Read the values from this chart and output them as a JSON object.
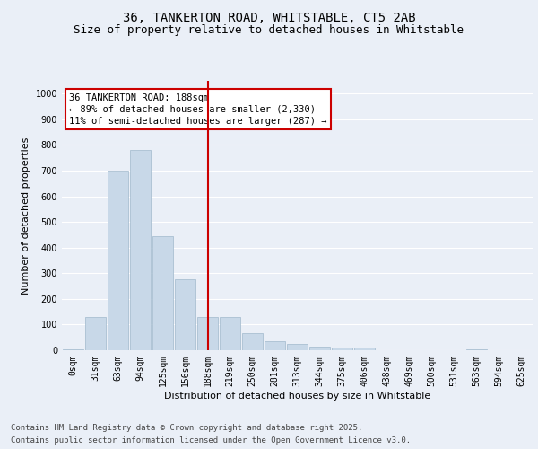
{
  "title_line1": "36, TANKERTON ROAD, WHITSTABLE, CT5 2AB",
  "title_line2": "Size of property relative to detached houses in Whitstable",
  "xlabel": "Distribution of detached houses by size in Whitstable",
  "ylabel": "Number of detached properties",
  "categories": [
    "0sqm",
    "31sqm",
    "63sqm",
    "94sqm",
    "125sqm",
    "156sqm",
    "188sqm",
    "219sqm",
    "250sqm",
    "281sqm",
    "313sqm",
    "344sqm",
    "375sqm",
    "406sqm",
    "438sqm",
    "469sqm",
    "500sqm",
    "531sqm",
    "563sqm",
    "594sqm",
    "625sqm"
  ],
  "values": [
    5,
    130,
    700,
    780,
    445,
    278,
    130,
    130,
    68,
    36,
    24,
    14,
    12,
    10,
    0,
    0,
    0,
    0,
    5,
    0,
    0
  ],
  "bar_color": "#c8d8e8",
  "bar_edge_color": "#a0b8cc",
  "vline_x_index": 6,
  "vline_color": "#cc0000",
  "annotation_lines": [
    "36 TANKERTON ROAD: 188sqm",
    "← 89% of detached houses are smaller (2,330)",
    "11% of semi-detached houses are larger (287) →"
  ],
  "annotation_box_color": "#cc0000",
  "annotation_bg": "#ffffff",
  "ylim": [
    0,
    1050
  ],
  "yticks": [
    0,
    100,
    200,
    300,
    400,
    500,
    600,
    700,
    800,
    900,
    1000
  ],
  "background_color": "#eaeff7",
  "plot_bg_color": "#eaeff7",
  "grid_color": "#ffffff",
  "footer_line1": "Contains HM Land Registry data © Crown copyright and database right 2025.",
  "footer_line2": "Contains public sector information licensed under the Open Government Licence v3.0.",
  "title_fontsize": 10,
  "subtitle_fontsize": 9,
  "axis_label_fontsize": 8,
  "tick_fontsize": 7,
  "annotation_fontsize": 7.5,
  "footer_fontsize": 6.5
}
